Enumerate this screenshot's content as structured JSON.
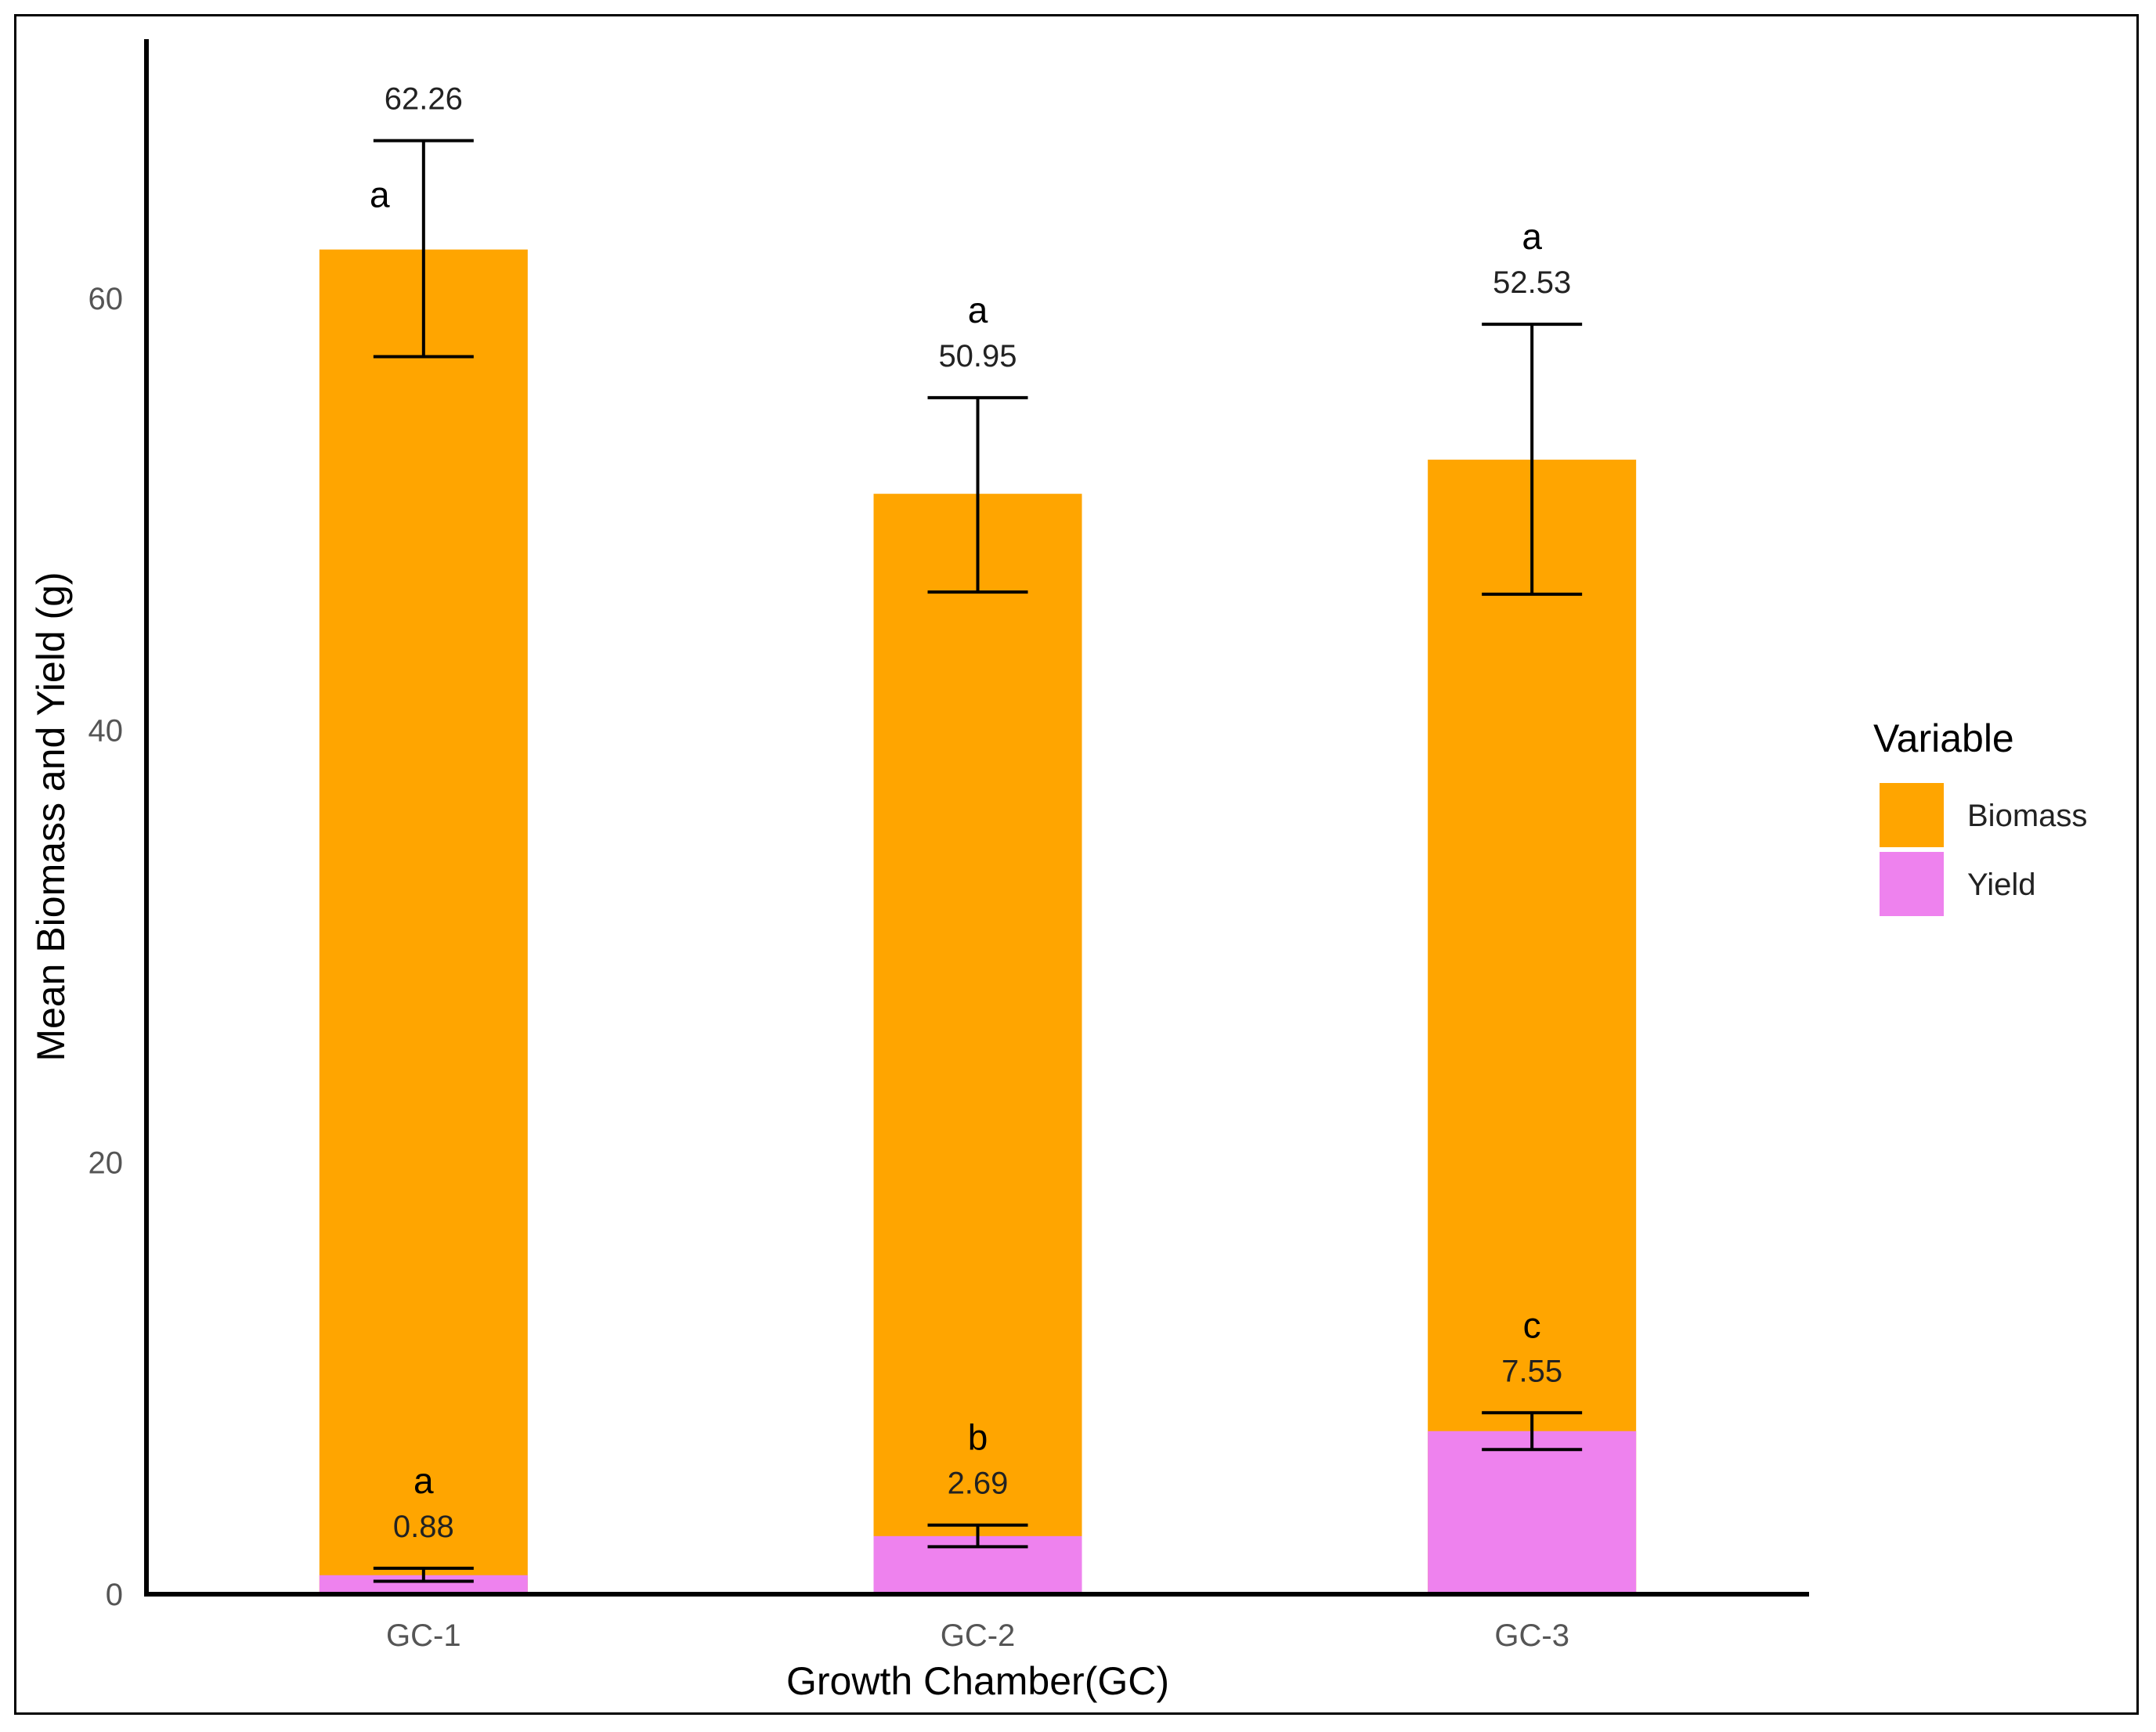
{
  "chart_data": {
    "type": "bar",
    "stacked": "overlay",
    "categories": [
      "GC-1",
      "GC-2",
      "GC-3"
    ],
    "xlabel": "Growth Chamber(GC)",
    "ylabel": "Mean Biomass and Yield (g)",
    "ylim": [
      0,
      72
    ],
    "yticks": [
      "0",
      "20",
      "40",
      "60"
    ],
    "grid": false,
    "legend": {
      "title": "Variable",
      "position": "right"
    },
    "series": [
      {
        "name": "Biomass",
        "color": "#FFA500",
        "values": [
          62.26,
          50.95,
          52.53
        ],
        "value_labels": [
          "62.26",
          "50.95",
          "52.53"
        ],
        "error_low": [
          57.3,
          46.4,
          46.3
        ],
        "error_high": [
          67.3,
          55.4,
          58.8
        ],
        "letters": [
          "a",
          "a",
          "a"
        ]
      },
      {
        "name": "Yield",
        "color": "#EE82EE",
        "values": [
          0.88,
          2.69,
          7.55
        ],
        "value_labels": [
          "0.88",
          "2.69",
          "7.55"
        ],
        "error_low": [
          0.6,
          2.2,
          6.7
        ],
        "error_high": [
          1.2,
          3.2,
          8.4
        ],
        "letters": [
          "a",
          "b",
          "c"
        ]
      }
    ]
  }
}
